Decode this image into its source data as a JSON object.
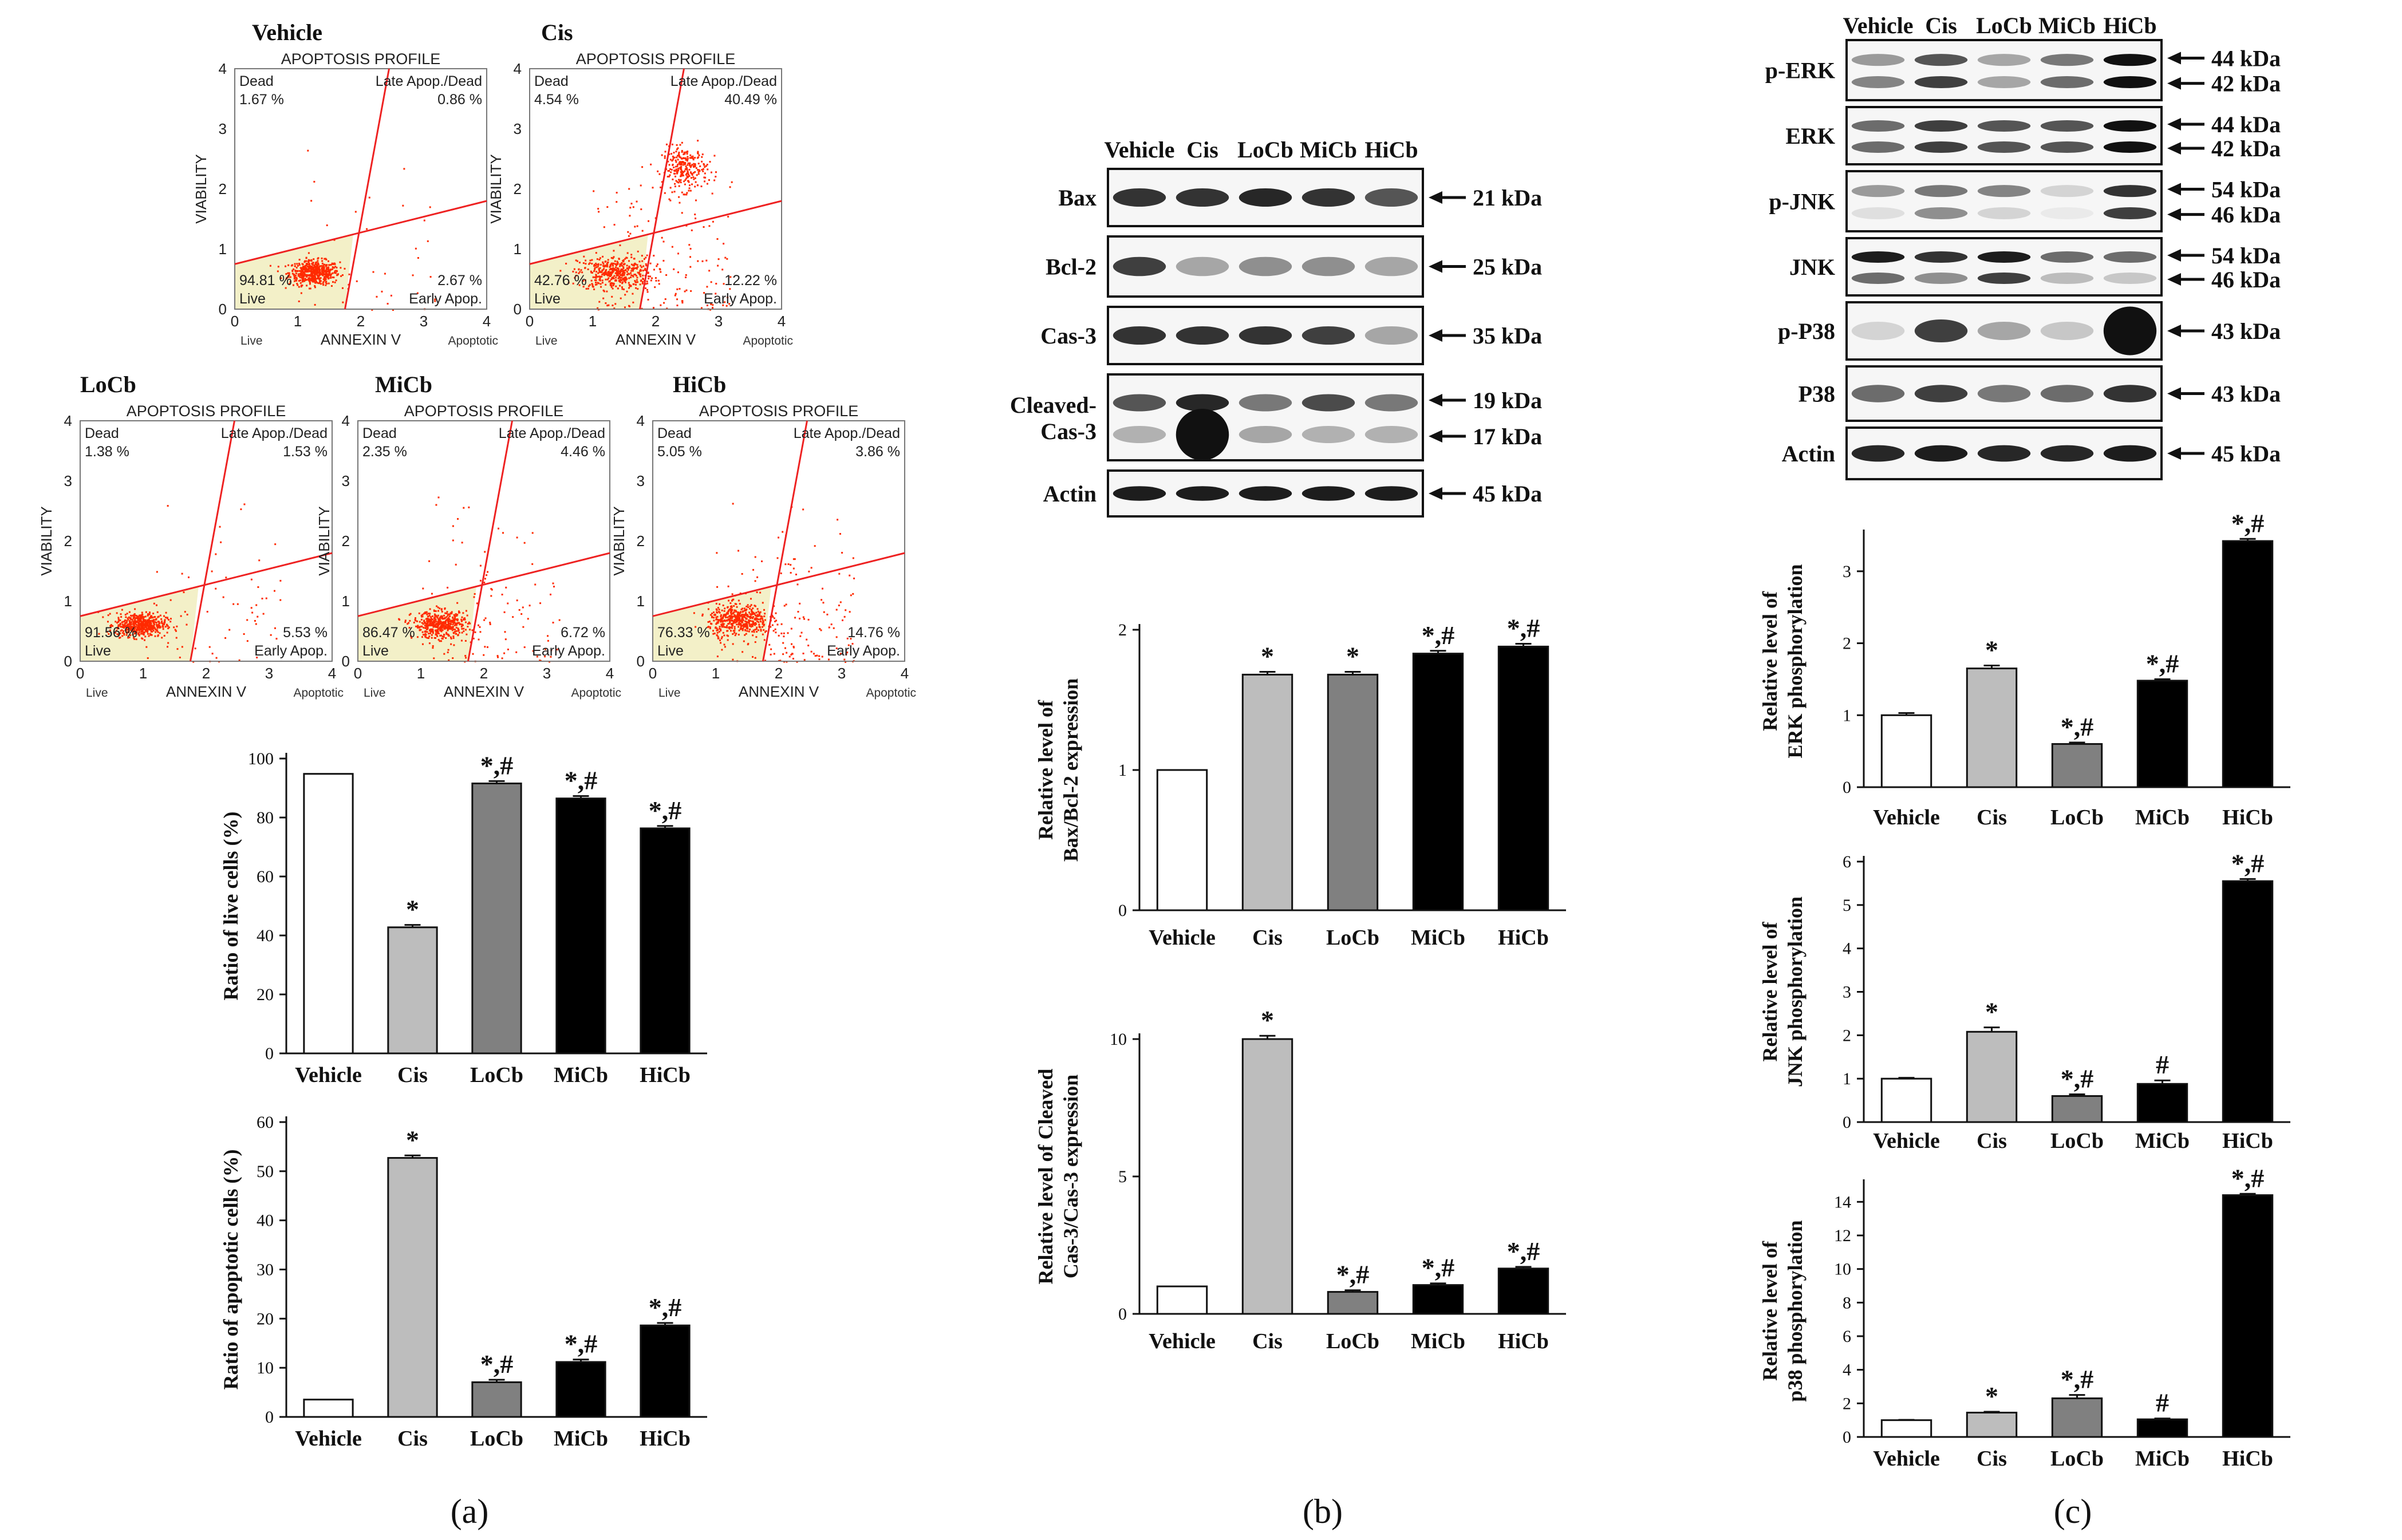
{
  "panels": {
    "a": "(a)",
    "b": "(b)",
    "c": "(c)"
  },
  "flow": {
    "profile_title": "APOPTOSIS PROFILE",
    "x_axis": "ANNEXIN V",
    "y_axis": "VIABILITY",
    "x_live": "Live",
    "x_apoptotic": "Apoptotic",
    "q_dead": "Dead",
    "q_late": "Late Apop./Dead",
    "q_live": "Live",
    "q_early": "Early Apop.",
    "ticks": [
      "0",
      "1",
      "2",
      "3",
      "4"
    ],
    "plots": [
      {
        "name": "Vehicle",
        "dead": "1.67 %",
        "late": "0.86 %",
        "live": "94.81 %",
        "early": "2.67 %"
      },
      {
        "name": "Cis",
        "dead": "4.54 %",
        "late": "40.49 %",
        "live": "42.76 %",
        "early": "12.22 %"
      },
      {
        "name": "LoCb",
        "dead": "1.38 %",
        "late": "1.53 %",
        "live": "91.56 %",
        "early": "5.53 %"
      },
      {
        "name": "MiCb",
        "dead": "2.35 %",
        "late": "4.46 %",
        "live": "86.47 %",
        "early": "6.72 %"
      },
      {
        "name": "HiCb",
        "dead": "5.05 %",
        "late": "3.86 %",
        "live": "76.33 %",
        "early": "14.76 %"
      }
    ]
  },
  "blot_b": {
    "lanes": [
      "Vehicle",
      "Cis",
      "LoCb",
      "MiCb",
      "HiCb"
    ],
    "rows": [
      {
        "label": "Bax",
        "kda": [
          "21 kDa"
        ]
      },
      {
        "label": "Bcl-2",
        "kda": [
          "25 kDa"
        ]
      },
      {
        "label": "Cas-3",
        "kda": [
          "35 kDa"
        ]
      },
      {
        "label": "Cleaved-",
        "label2": "Cas-3",
        "kda": [
          "19 kDa",
          "17 kDa"
        ]
      },
      {
        "label": "Actin",
        "kda": [
          "45 kDa"
        ]
      }
    ]
  },
  "blot_c": {
    "lanes": [
      "Vehicle",
      "Cis",
      "LoCb",
      "MiCb",
      "HiCb"
    ],
    "rows": [
      {
        "label": "p-ERK",
        "kda": [
          "44 kDa",
          "42 kDa"
        ]
      },
      {
        "label": "ERK",
        "kda": [
          "44 kDa",
          "42 kDa"
        ]
      },
      {
        "label": "p-JNK",
        "kda": [
          "54 kDa",
          "46 kDa"
        ]
      },
      {
        "label": "JNK",
        "kda": [
          "54 kDa",
          "46 kDa"
        ]
      },
      {
        "label": "p-P38",
        "kda": [
          "43 kDa"
        ]
      },
      {
        "label": "P38",
        "kda": [
          "43 kDa"
        ]
      },
      {
        "label": "Actin",
        "kda": [
          "45 kDa"
        ]
      }
    ]
  },
  "colors": {
    "vehicle": "#ffffff",
    "cis": "#bdbdbd",
    "locb": "#808080",
    "micb": "#000000",
    "hicb": "#000000",
    "flow_dot": "#ff2a00",
    "flow_gate": "#ee2222"
  },
  "chart_data": [
    {
      "id": "live",
      "type": "bar",
      "categories": [
        "Vehicle",
        "Cis",
        "LoCb",
        "MiCb",
        "HiCb"
      ],
      "values": [
        94.81,
        42.76,
        91.56,
        86.47,
        76.33
      ],
      "errors": [
        0,
        0.8,
        0.8,
        0.8,
        0.8
      ],
      "sig": [
        "",
        "*",
        "*,#",
        "*,#",
        "*,#"
      ],
      "ylabel": "Ratio of live cells (%)",
      "ylim": [
        0,
        100
      ],
      "ticks": [
        0,
        20,
        40,
        60,
        80,
        100
      ],
      "title": ""
    },
    {
      "id": "apop",
      "type": "bar",
      "categories": [
        "Vehicle",
        "Cis",
        "LoCb",
        "MiCb",
        "HiCb"
      ],
      "values": [
        3.53,
        52.71,
        7.06,
        11.18,
        18.62
      ],
      "errors": [
        0,
        0.5,
        0.5,
        0.5,
        0.5
      ],
      "sig": [
        "",
        "*",
        "*,#",
        "*,#",
        "*,#"
      ],
      "ylabel": "Ratio of apoptotic cells (%)",
      "ylim": [
        0,
        60
      ],
      "ticks": [
        0,
        10,
        20,
        30,
        40,
        50,
        60
      ],
      "title": ""
    },
    {
      "id": "baxbcl",
      "type": "bar",
      "categories": [
        "Vehicle",
        "Cis",
        "LoCb",
        "MiCb",
        "HiCb"
      ],
      "values": [
        1.0,
        1.68,
        1.68,
        1.83,
        1.88
      ],
      "errors": [
        0,
        0.02,
        0.02,
        0.02,
        0.02
      ],
      "sig": [
        "",
        "*",
        "*",
        "*,#",
        "*,#"
      ],
      "ylabel": "Relative level of",
      "ylabel2": "Bax/Bcl-2 expression",
      "ylim": [
        0,
        2
      ],
      "ticks": [
        0,
        1,
        2
      ],
      "title": ""
    },
    {
      "id": "cas",
      "type": "bar",
      "categories": [
        "Vehicle",
        "Cis",
        "LoCb",
        "MiCb",
        "HiCb"
      ],
      "values": [
        1.0,
        10.0,
        0.8,
        1.05,
        1.65
      ],
      "errors": [
        0,
        0.12,
        0.06,
        0.06,
        0.06
      ],
      "sig": [
        "",
        "*",
        "*,#",
        "*,#",
        "*,#"
      ],
      "ylabel": "Relative level of  Cleaved",
      "ylabel2": "Cas-3/Cas-3 expression",
      "ylim": [
        0,
        10
      ],
      "ticks": [
        0,
        5,
        10
      ],
      "title": ""
    },
    {
      "id": "erk",
      "type": "bar",
      "categories": [
        "Vehicle",
        "Cis",
        "LoCb",
        "MiCb",
        "HiCb"
      ],
      "values": [
        1.0,
        1.65,
        0.6,
        1.48,
        3.42
      ],
      "errors": [
        0.03,
        0.04,
        0.02,
        0.02,
        0.03
      ],
      "sig": [
        "",
        "*",
        "*,#",
        "*,#",
        "*,#"
      ],
      "ylabel": "Relative level of",
      "ylabel2": "ERK phosphorylation",
      "ylim": [
        0,
        3.5
      ],
      "ticks": [
        0,
        1,
        2,
        3
      ],
      "title": ""
    },
    {
      "id": "jnk",
      "type": "bar",
      "categories": [
        "Vehicle",
        "Cis",
        "LoCb",
        "MiCb",
        "HiCb"
      ],
      "values": [
        1.0,
        2.08,
        0.6,
        0.88,
        5.55
      ],
      "errors": [
        0.02,
        0.1,
        0.04,
        0.08,
        0.05
      ],
      "sig": [
        "",
        "*",
        "*,#",
        "#",
        "*,#"
      ],
      "ylabel": "Relative level of",
      "ylabel2": "JNK phosphorylation",
      "ylim": [
        0,
        6
      ],
      "ticks": [
        0,
        1,
        2,
        3,
        4,
        5,
        6
      ],
      "title": ""
    },
    {
      "id": "p38",
      "type": "bar",
      "categories": [
        "Vehicle",
        "Cis",
        "LoCb",
        "MiCb",
        "HiCb"
      ],
      "values": [
        1.0,
        1.45,
        2.3,
        1.05,
        14.4
      ],
      "errors": [
        0.02,
        0.05,
        0.2,
        0.05,
        0.08
      ],
      "sig": [
        "",
        "*",
        "*,#",
        "#",
        "*,#"
      ],
      "ylabel": "Relative level of",
      "ylabel2": "p38 phosphorylation",
      "ylim": [
        0,
        15
      ],
      "ticks": [
        0,
        2,
        4,
        6,
        8,
        10,
        12,
        14
      ],
      "title": ""
    }
  ]
}
